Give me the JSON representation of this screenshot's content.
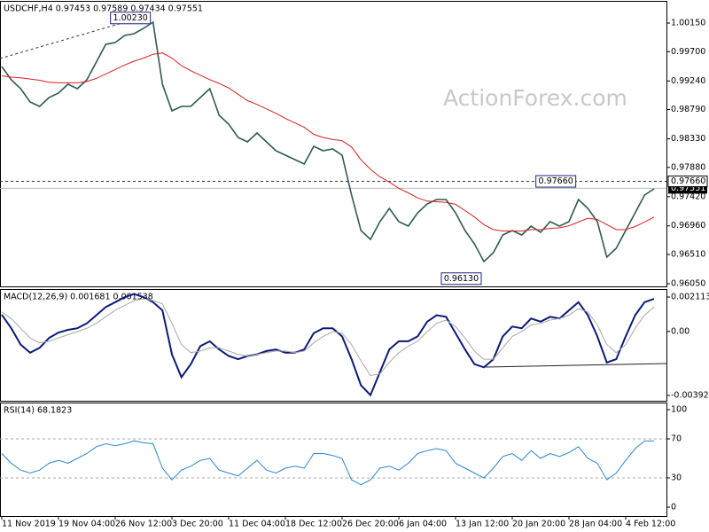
{
  "chart_data": [
    {
      "type": "line",
      "title": "USDCHF,H4  0.97453 0.97589 0.97434 0.97551",
      "watermark": "ActionForex.com",
      "ylim": [
        0.96008,
        1.00485
      ],
      "yticks": [
        {
          "value": 1.0015,
          "label": "1.00150"
        },
        {
          "value": 0.997,
          "label": "0.99700"
        },
        {
          "value": 0.9924,
          "label": "0.99240"
        },
        {
          "value": 0.9879,
          "label": "0.98790"
        },
        {
          "value": 0.9833,
          "label": "0.98330"
        },
        {
          "value": 0.9788,
          "label": "0.97880"
        },
        {
          "value": 0.9742,
          "label": "0.97420"
        },
        {
          "value": 0.9696,
          "label": "0.96960"
        },
        {
          "value": 0.9651,
          "label": "0.96510"
        },
        {
          "value": 0.9605,
          "label": "0.96050"
        }
      ],
      "series": [
        {
          "color": "#2f5a52",
          "width": 1.6,
          "values": [
            0.99467,
            0.99257,
            0.99118,
            0.98909,
            0.98839,
            0.98979,
            0.99048,
            0.99188,
            0.99118,
            0.99257,
            0.99536,
            0.99815,
            0.99843,
            0.99955,
            0.99983,
            1.00066,
            1.00164,
            0.99188,
            0.98769,
            0.98839,
            0.98839,
            0.98979,
            0.99118,
            0.987,
            0.9856,
            0.98351,
            0.98281,
            0.98421,
            0.98281,
            0.98142,
            0.98072,
            0.98002,
            0.97933,
            0.98212,
            0.98142,
            0.9817,
            0.98072,
            0.97444,
            0.96887,
            0.96747,
            0.97026,
            0.97235,
            0.97026,
            0.96956,
            0.97166,
            0.97305,
            0.97375,
            0.97375,
            0.97166,
            0.96887,
            0.96677,
            0.96399,
            0.96538,
            0.96817,
            0.96887,
            0.96817,
            0.96956,
            0.96859,
            0.97026,
            0.96956,
            0.97026,
            0.97375,
            0.97235,
            0.97026,
            0.96468,
            0.96608,
            0.96887,
            0.97166,
            0.97444,
            0.97542
          ]
        },
        {
          "color": "#d42020",
          "width": 1,
          "values": [
            0.9932,
            0.993,
            0.9929,
            0.9927,
            0.9925,
            0.9922,
            0.9921,
            0.9921,
            0.9921,
            0.9923,
            0.9928,
            0.9935,
            0.9942,
            0.9949,
            0.9955,
            0.996,
            0.9966,
            0.9968,
            0.996,
            0.9948,
            0.994,
            0.9933,
            0.9926,
            0.992,
            0.9913,
            0.9903,
            0.9893,
            0.9887,
            0.988,
            0.9873,
            0.9865,
            0.9858,
            0.9851,
            0.984,
            0.9835,
            0.9832,
            0.983,
            0.982,
            0.98,
            0.9785,
            0.9773,
            0.9765,
            0.9755,
            0.9748,
            0.974,
            0.9735,
            0.9734,
            0.9733,
            0.973,
            0.972,
            0.971,
            0.9698,
            0.969,
            0.9688,
            0.9688,
            0.9688,
            0.969,
            0.969,
            0.9692,
            0.9693,
            0.9696,
            0.9702,
            0.9708,
            0.9706,
            0.9698,
            0.969,
            0.969,
            0.9695,
            0.9702,
            0.971
          ]
        }
      ],
      "annotations": [
        {
          "label": "1.00230",
          "value": 1.0023,
          "index": 16
        },
        {
          "label": "0.97660",
          "value": 0.9766,
          "index": 61,
          "dashed_line": true,
          "axis_box": true
        },
        {
          "label": "0.96130",
          "value": 0.9613,
          "index": 51
        }
      ],
      "last_price": {
        "value": 0.97551,
        "label": "0.97551"
      }
    },
    {
      "type": "line",
      "title": "MACD(12,26,9) 0.001681 0.001538",
      "ylim": [
        -0.004248,
        0.002548
      ],
      "yticks": [
        0.002113,
        {
          "value": 0,
          "label": "0.00"
        },
        -0.003922
      ],
      "series": [
        {
          "color": "#0b1a78",
          "width": 2,
          "values": [
            0.00103,
            0.0002,
            -0.0008,
            -0.0013,
            -0.001,
            -0.0004,
            -6e-05,
            0.0001,
            0.0002,
            0.0005,
            0.001,
            0.0015,
            0.0018,
            0.0021,
            0.0023,
            0.0021,
            0.0018,
            0.0013,
            -0.0014,
            -0.0028,
            -0.002,
            -0.0009,
            -0.0006,
            -0.0011,
            -0.0015,
            -0.0017,
            -0.0015,
            -0.0014,
            -0.0012,
            -0.0011,
            -0.0013,
            -0.0013,
            -0.0011,
            -0.0001,
            0.0002,
            0.0002,
            -0.0003,
            -0.0017,
            -0.0033,
            -0.0039,
            -0.0025,
            -0.0011,
            -0.0006,
            -0.0006,
            -0.0003,
            0.0006,
            0.001,
            0.0009,
            -0.0001,
            -0.0011,
            -0.002,
            -0.0022,
            -0.0017,
            -0.0003,
            0.0003,
            0.0002,
            0.0008,
            0.0006,
            0.0009,
            0.0008,
            0.0013,
            0.0018,
            0.001,
            -0.0003,
            -0.0019,
            -0.0017,
            -0.0003,
            0.001,
            0.0018,
            0.002
          ]
        },
        {
          "color": "#a8a8a8",
          "width": 1,
          "values": [
            0.0012,
            0.0008,
            0.0002,
            -0.0004,
            -0.0007,
            -0.0006,
            -0.0004,
            -0.0002,
            0,
            0.0002,
            0.0005,
            0.0009,
            0.0013,
            0.0016,
            0.0019,
            0.002,
            0.0019,
            0.0017,
            0.0005,
            -0.0008,
            -0.0013,
            -0.0012,
            -0.001,
            -0.001,
            -0.0012,
            -0.0014,
            -0.0015,
            -0.0014,
            -0.0013,
            -0.0012,
            -0.0012,
            -0.0013,
            -0.0012,
            -0.0007,
            -0.0003,
            0,
            -0.0001,
            -0.0008,
            -0.0018,
            -0.0027,
            -0.0026,
            -0.0019,
            -0.0013,
            -0.0009,
            -0.0006,
            0,
            0.0005,
            0.0007,
            0.0003,
            -0.0004,
            -0.0012,
            -0.0017,
            -0.0017,
            -0.001,
            -0.0003,
            0,
            0.0004,
            0.0005,
            0.0007,
            0.0008,
            0.001,
            0.0014,
            0.0012,
            0.0004,
            -0.0008,
            -0.0013,
            -0.0008,
            0.0002,
            0.001,
            0.0015
          ]
        }
      ]
    },
    {
      "type": "line",
      "title": "RSI(14) 68.1823",
      "ylim": [
        -9.1,
        106.4
      ],
      "yticks": [
        100,
        70,
        30,
        0
      ],
      "levels": [
        70,
        30
      ],
      "series": [
        {
          "color": "#2a86d0",
          "width": 1,
          "values": [
            55,
            45,
            38,
            35,
            38,
            45,
            48,
            45,
            50,
            55,
            62,
            65,
            63,
            65,
            68,
            66,
            65,
            40,
            28,
            38,
            42,
            48,
            50,
            38,
            35,
            32,
            40,
            48,
            38,
            35,
            40,
            42,
            40,
            55,
            55,
            53,
            50,
            28,
            23,
            28,
            40,
            42,
            38,
            45,
            55,
            58,
            60,
            58,
            45,
            40,
            35,
            30,
            40,
            52,
            55,
            48,
            58,
            50,
            55,
            52,
            56,
            62,
            50,
            45,
            28,
            35,
            48,
            60,
            68,
            68
          ]
        }
      ],
      "x": [
        "11 Nov 2019",
        null,
        null,
        null,
        null,
        null,
        "19 Nov 04:00",
        null,
        null,
        null,
        null,
        null,
        "26 Nov 12:00",
        null,
        null,
        null,
        null,
        null,
        "3 Dec 20:00",
        null,
        null,
        null,
        null,
        null,
        "11 Dec 04:00",
        null,
        null,
        null,
        null,
        null,
        "18 Dec 12:00",
        null,
        null,
        null,
        null,
        null,
        "26 Dec 20:00",
        null,
        null,
        null,
        null,
        null,
        "6 Jan 04:00",
        null,
        null,
        null,
        null,
        null,
        "13 Jan 12:00",
        null,
        null,
        null,
        null,
        null,
        "20 Jan 20:00",
        null,
        null,
        null,
        null,
        null,
        "28 Jan 04:00",
        null,
        null,
        null,
        null,
        null,
        "4 Feb 12:00",
        null,
        null,
        null
      ]
    }
  ]
}
